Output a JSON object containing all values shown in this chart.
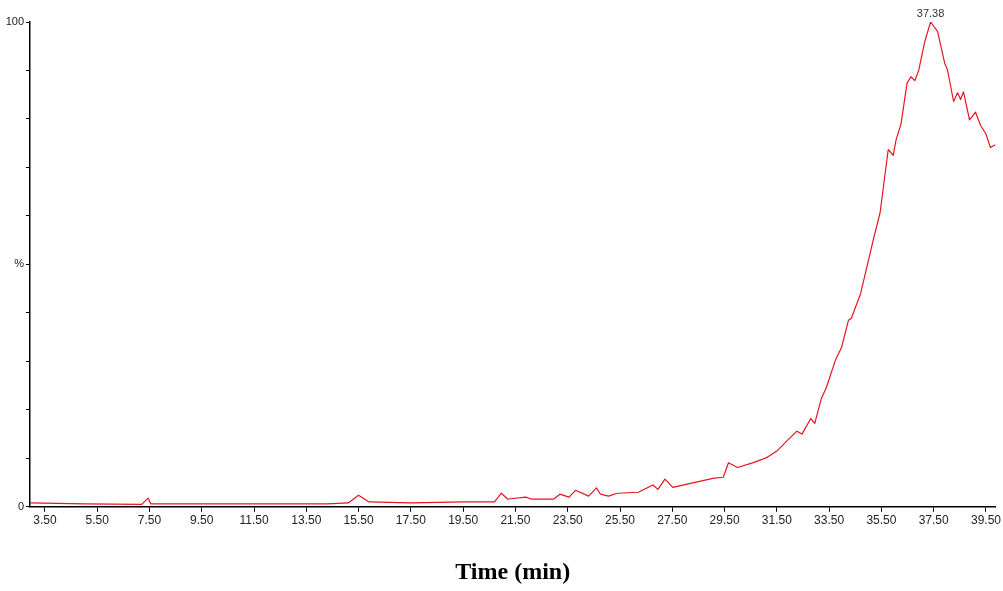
{
  "chart_data": {
    "type": "line",
    "xlabel": "Time (min)",
    "xlim": [
      2.93,
      39.86
    ],
    "ylim": [
      0,
      100
    ],
    "xticks": [
      {
        "value": 3.5,
        "label": "3.50"
      },
      {
        "value": 5.5,
        "label": "5.50"
      },
      {
        "value": 7.5,
        "label": "7.50"
      },
      {
        "value": 9.5,
        "label": "9.50"
      },
      {
        "value": 11.5,
        "label": "11.50"
      },
      {
        "value": 13.5,
        "label": "13.50"
      },
      {
        "value": 15.5,
        "label": "15.50"
      },
      {
        "value": 17.5,
        "label": "17.50"
      },
      {
        "value": 19.5,
        "label": "19.50"
      },
      {
        "value": 21.5,
        "label": "21.50"
      },
      {
        "value": 23.5,
        "label": "23.50"
      },
      {
        "value": 25.5,
        "label": "25.50"
      },
      {
        "value": 27.5,
        "label": "27.50"
      },
      {
        "value": 29.5,
        "label": "29.50"
      },
      {
        "value": 31.5,
        "label": "31.50"
      },
      {
        "value": 33.5,
        "label": "33.50"
      },
      {
        "value": 35.5,
        "label": "35.50"
      },
      {
        "value": 37.5,
        "label": "37.50"
      },
      {
        "value": 39.5,
        "label": "39.50"
      }
    ],
    "yticks": [
      0,
      {
        "value": 10,
        "label": null
      },
      {
        "value": 20,
        "label": null
      },
      {
        "value": 30,
        "label": null
      },
      {
        "value": 40,
        "label": null
      },
      {
        "value": 50,
        "label": "%"
      },
      {
        "value": 60,
        "label": null
      },
      {
        "value": 70,
        "label": null
      },
      {
        "value": 80,
        "label": null
      },
      {
        "value": 90,
        "label": null
      },
      100
    ],
    "grid": false,
    "legend": false,
    "marker": "none",
    "line_style": "solid",
    "annotations": [
      {
        "text": "37.38",
        "x": 37.38,
        "y": 100
      }
    ],
    "series": [
      {
        "color": "#e8141e",
        "x": [
          2.93,
          5.0,
          7.2,
          7.45,
          7.55,
          14.3,
          15.1,
          15.5,
          15.9,
          17.5,
          19.5,
          20.0,
          20.7,
          20.96,
          21.2,
          21.9,
          22.1,
          22.97,
          23.2,
          23.55,
          23.8,
          24.3,
          24.6,
          24.75,
          25.06,
          25.4,
          26.2,
          26.76,
          26.95,
          27.22,
          27.52,
          28.24,
          29.1,
          29.45,
          29.65,
          29.99,
          30.6,
          31.13,
          31.5,
          31.96,
          32.27,
          32.46,
          32.8,
          32.95,
          33.2,
          33.4,
          33.75,
          33.97,
          34.24,
          34.35,
          34.7,
          35.19,
          35.45,
          35.76,
          35.95,
          36.06,
          36.25,
          36.48,
          36.63,
          36.78,
          36.93,
          37.16,
          37.38,
          37.65,
          37.92,
          38.03,
          38.26,
          38.41,
          38.53,
          38.64,
          38.87,
          39.1,
          39.29,
          39.5,
          39.67,
          39.86
        ],
        "values": [
          0.8,
          0.6,
          0.5,
          1.8,
          0.6,
          0.6,
          0.8,
          2.4,
          1.0,
          0.8,
          1.0,
          1.0,
          1.0,
          2.8,
          1.6,
          2.0,
          1.6,
          1.6,
          2.6,
          2.0,
          3.4,
          2.2,
          3.9,
          2.6,
          2.2,
          2.8,
          3.0,
          4.5,
          3.6,
          5.7,
          4.0,
          4.9,
          5.9,
          6.1,
          9.1,
          8.1,
          9.1,
          10.2,
          11.5,
          14.0,
          15.6,
          15.0,
          18.2,
          17.2,
          22.3,
          24.7,
          30.4,
          32.8,
          38.5,
          38.9,
          43.9,
          55.1,
          60.7,
          73.7,
          72.5,
          75.7,
          79.0,
          87.4,
          88.7,
          87.9,
          90.1,
          96.0,
          100,
          98.0,
          91.5,
          90.1,
          83.6,
          85.4,
          84.0,
          85.6,
          79.8,
          81.4,
          78.7,
          76.9,
          74.1,
          74.7
        ]
      }
    ]
  }
}
